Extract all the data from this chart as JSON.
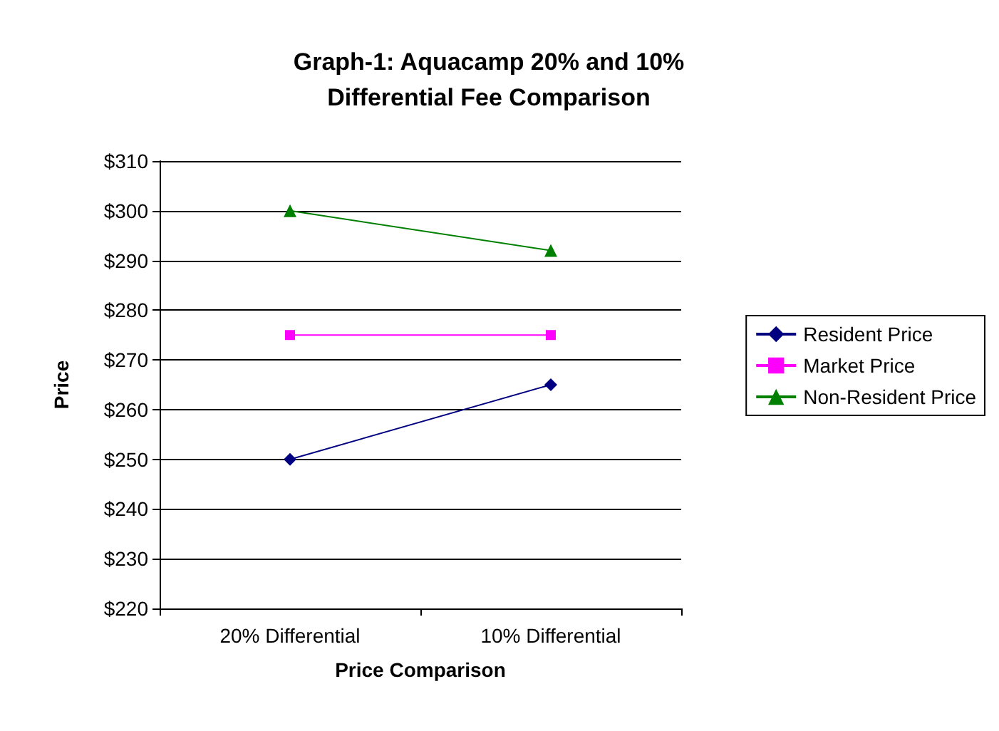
{
  "chart_data": {
    "type": "line",
    "title": "Graph-1: Aquacamp 20% and 10%\nDifferential Fee Comparison",
    "xlabel": "Price Comparison",
    "ylabel": "Price",
    "categories": [
      "20% Differential",
      "10% Differential"
    ],
    "series": [
      {
        "name": "Resident Price",
        "color": "#000080",
        "marker": "diamond",
        "values": [
          250,
          265
        ]
      },
      {
        "name": "Market Price",
        "color": "#ff00ff",
        "marker": "square",
        "values": [
          275,
          275
        ]
      },
      {
        "name": "Non-Resident Price",
        "color": "#008000",
        "marker": "triangle",
        "values": [
          300,
          292
        ]
      }
    ],
    "ylim": [
      220,
      310
    ],
    "yticks": [
      {
        "value": 220,
        "label": "$220"
      },
      {
        "value": 230,
        "label": "$230"
      },
      {
        "value": 240,
        "label": "$240"
      },
      {
        "value": 250,
        "label": "$250"
      },
      {
        "value": 260,
        "label": "$260"
      },
      {
        "value": 270,
        "label": "$270"
      },
      {
        "value": 280,
        "label": "$280"
      },
      {
        "value": 290,
        "label": "$290"
      },
      {
        "value": 300,
        "label": "$300"
      },
      {
        "value": 310,
        "label": "$310"
      }
    ],
    "grid": "y",
    "legend": "right",
    "line_style": "solid"
  }
}
